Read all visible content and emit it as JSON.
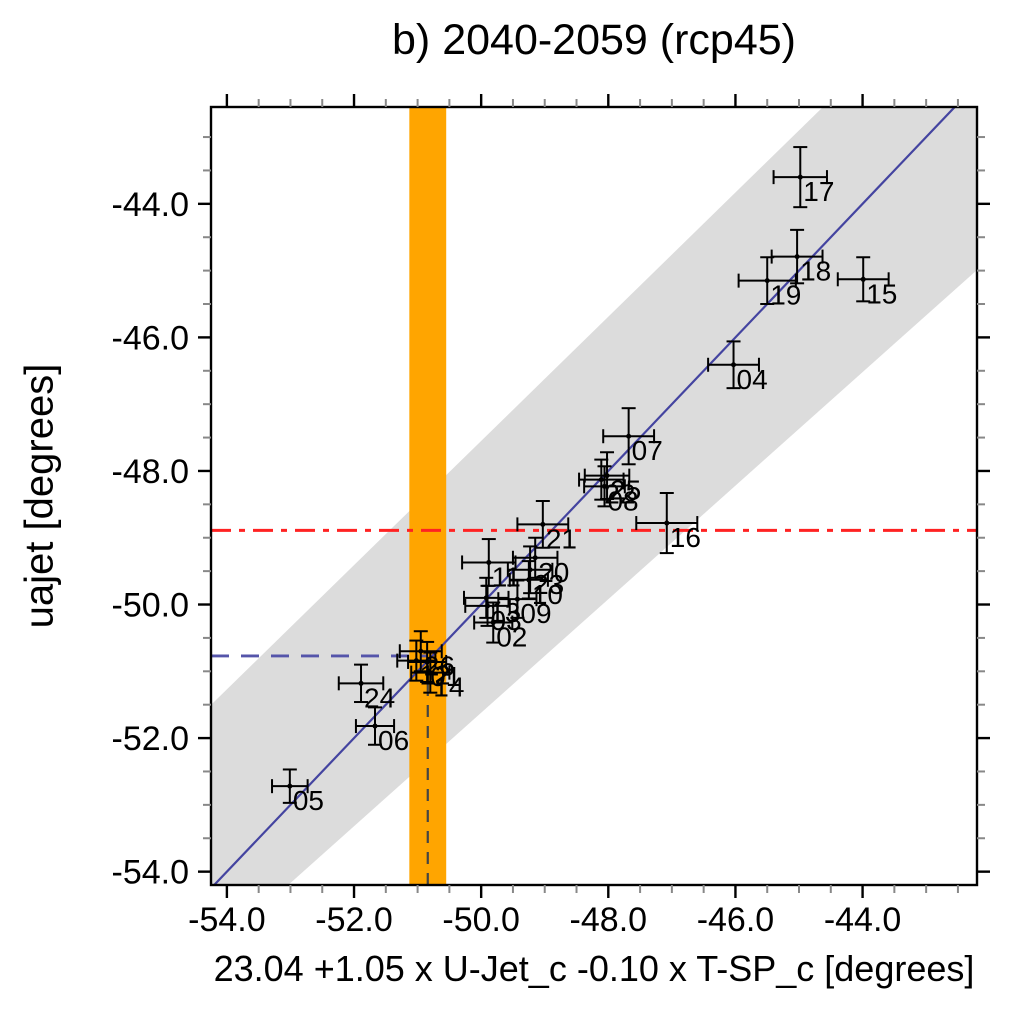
{
  "chart_data": {
    "type": "scatter",
    "title": "b) 2040-2059 (rcp45)",
    "xlabel": "23.04 +1.05 x U-Jet_c -0.10 x T-SP_c [degrees]",
    "ylabel": "uajet [degrees]",
    "xlim": [
      -54.25,
      -42.2
    ],
    "ylim": [
      -54.2,
      -42.55
    ],
    "x_major_ticks": [
      -54.0,
      -52.0,
      -50.0,
      -48.0,
      -46.0,
      -44.0
    ],
    "y_major_ticks": [
      -44.0,
      -46.0,
      -48.0,
      -50.0,
      -52.0,
      -54.0
    ],
    "minor_tick_step": 0.5,
    "tick_decimals": 1,
    "grid": false,
    "legend": "none",
    "colors": {
      "gray_band": "#dcdcdc",
      "orange_band": "#FFA500",
      "one_to_one_line": "#4444A0",
      "constrained_line": "#5555AA",
      "unconstrained_line": "#FF2222",
      "vertical_dashed": "#444444",
      "points": "#000000",
      "minor_tick": "#888888",
      "axis": "#000000"
    },
    "gray_band": {
      "top_edge": {
        "slope": 0.93,
        "intercept": -1.05
      },
      "bottom_edge": {
        "slope": 0.85,
        "intercept": -9.12
      }
    },
    "orange_band": {
      "x_min": -51.13,
      "x_max": -50.55
    },
    "one_to_one_line": {
      "slope": 1,
      "intercept": 0
    },
    "unconstrained_mean_line": {
      "y": -48.89,
      "style": "dash-dot"
    },
    "constrained_mean_line": {
      "y": -50.77,
      "x_end": -50.84,
      "style": "dashed"
    },
    "constraint_vertical_line": {
      "x": -50.84,
      "y_top": -50.77,
      "style": "dashed"
    },
    "points": [
      {
        "label": "01",
        "x": -50.85,
        "y": -50.86,
        "xerr": 0.3,
        "yerr": 0.3
      },
      {
        "label": "02",
        "x": -49.81,
        "y": -50.27,
        "xerr": 0.3,
        "yerr": 0.3
      },
      {
        "label": "03",
        "x": -49.9,
        "y": -50.02,
        "xerr": 0.35,
        "yerr": 0.3
      },
      {
        "label": "04",
        "x": -46.03,
        "y": -46.41,
        "xerr": 0.4,
        "yerr": 0.35
      },
      {
        "label": "05",
        "x": -53.01,
        "y": -52.72,
        "xerr": 0.28,
        "yerr": 0.25
      },
      {
        "label": "06",
        "x": -51.67,
        "y": -51.82,
        "xerr": 0.3,
        "yerr": 0.28
      },
      {
        "label": "07",
        "x": -47.68,
        "y": -47.48,
        "xerr": 0.4,
        "yerr": 0.42
      },
      {
        "label": "08",
        "x": -48.06,
        "y": -48.23,
        "xerr": 0.32,
        "yerr": 0.3
      },
      {
        "label": "09",
        "x": -49.43,
        "y": -49.92,
        "xerr": 0.3,
        "yerr": 0.28
      },
      {
        "label": "10",
        "x": -49.25,
        "y": -49.63,
        "xerr": 0.3,
        "yerr": 0.28
      },
      {
        "label": "11",
        "x": -49.88,
        "y": -49.37,
        "xerr": 0.42,
        "yerr": 0.35
      },
      {
        "label": "12",
        "x": -51.02,
        "y": -50.84,
        "xerr": 0.3,
        "yerr": 0.3
      },
      {
        "label": "13",
        "x": -49.92,
        "y": -49.9,
        "xerr": 0.35,
        "yerr": 0.3
      },
      {
        "label": "14",
        "x": -50.8,
        "y": -51.02,
        "xerr": 0.3,
        "yerr": 0.3
      },
      {
        "label": "15",
        "x": -43.99,
        "y": -45.13,
        "xerr": 0.4,
        "yerr": 0.33
      },
      {
        "label": "16",
        "x": -47.08,
        "y": -48.78,
        "xerr": 0.48,
        "yerr": 0.45
      },
      {
        "label": "17",
        "x": -44.98,
        "y": -43.6,
        "xerr": 0.42,
        "yerr": 0.45
      },
      {
        "label": "18",
        "x": -45.03,
        "y": -44.79,
        "xerr": 0.4,
        "yerr": 0.4
      },
      {
        "label": "19",
        "x": -45.5,
        "y": -45.15,
        "xerr": 0.45,
        "yerr": 0.35
      },
      {
        "label": "20",
        "x": -49.15,
        "y": -49.3,
        "xerr": 0.35,
        "yerr": 0.3
      },
      {
        "label": "21",
        "x": -49.03,
        "y": -48.8,
        "xerr": 0.4,
        "yerr": 0.35
      },
      {
        "label": "22",
        "x": -48.11,
        "y": -48.13,
        "xerr": 0.35,
        "yerr": 0.3
      },
      {
        "label": "23",
        "x": -49.23,
        "y": -49.48,
        "xerr": 0.35,
        "yerr": 0.35
      },
      {
        "label": "24",
        "x": -51.89,
        "y": -51.18,
        "xerr": 0.35,
        "yerr": 0.28
      },
      {
        "label": "25",
        "x": -48.02,
        "y": -48.07,
        "xerr": 0.35,
        "yerr": 0.35
      },
      {
        "label": "26",
        "x": -50.95,
        "y": -50.7,
        "xerr": 0.33,
        "yerr": 0.3
      }
    ]
  }
}
